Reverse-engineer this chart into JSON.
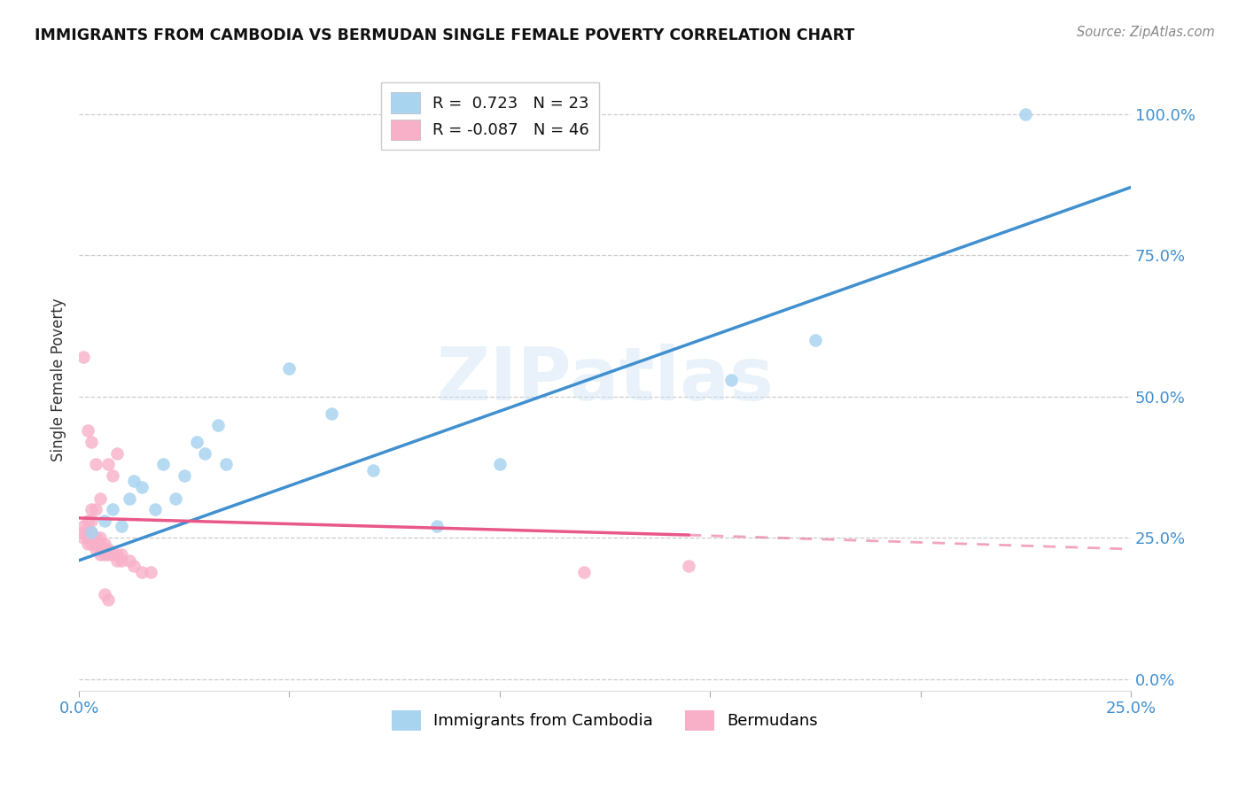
{
  "title": "IMMIGRANTS FROM CAMBODIA VS BERMUDAN SINGLE FEMALE POVERTY CORRELATION CHART",
  "source": "Source: ZipAtlas.com",
  "ylabel": "Single Female Poverty",
  "yticks": [
    "0.0%",
    "25.0%",
    "50.0%",
    "75.0%",
    "100.0%"
  ],
  "ytick_vals": [
    0.0,
    0.25,
    0.5,
    0.75,
    1.0
  ],
  "xlim": [
    0.0,
    0.25
  ],
  "ylim": [
    -0.02,
    1.08
  ],
  "r_cambodia": 0.723,
  "n_cambodia": 23,
  "r_bermuda": -0.087,
  "n_bermuda": 46,
  "legend_label_cambodia": "Immigrants from Cambodia",
  "legend_label_bermuda": "Bermudans",
  "color_cambodia": "#A8D4F0",
  "color_cambodia_line": "#4090D0",
  "color_bermuda": "#F8B0C8",
  "color_bermuda_line": "#E85888",
  "watermark": "ZIPatlas",
  "background_color": "#ffffff",
  "scatter_cambodia_x": [
    0.003,
    0.006,
    0.008,
    0.01,
    0.012,
    0.013,
    0.015,
    0.018,
    0.02,
    0.023,
    0.025,
    0.028,
    0.03,
    0.033,
    0.035,
    0.05,
    0.06,
    0.07,
    0.085,
    0.1,
    0.155,
    0.175,
    0.225
  ],
  "scatter_cambodia_y": [
    0.26,
    0.28,
    0.3,
    0.27,
    0.32,
    0.35,
    0.34,
    0.3,
    0.38,
    0.32,
    0.36,
    0.42,
    0.4,
    0.45,
    0.38,
    0.55,
    0.47,
    0.37,
    0.27,
    0.38,
    0.53,
    0.6,
    1.0
  ],
  "scatter_bermuda_x": [
    0.001,
    0.001,
    0.001,
    0.002,
    0.002,
    0.002,
    0.002,
    0.003,
    0.003,
    0.003,
    0.003,
    0.003,
    0.004,
    0.004,
    0.004,
    0.004,
    0.005,
    0.005,
    0.005,
    0.005,
    0.005,
    0.006,
    0.006,
    0.006,
    0.007,
    0.007,
    0.007,
    0.008,
    0.008,
    0.009,
    0.009,
    0.009,
    0.01,
    0.01,
    0.012,
    0.013,
    0.015,
    0.017,
    0.002,
    0.003,
    0.004,
    0.006,
    0.007,
    0.12,
    0.145,
    0.001
  ],
  "scatter_bermuda_y": [
    0.25,
    0.26,
    0.27,
    0.24,
    0.25,
    0.26,
    0.28,
    0.24,
    0.25,
    0.26,
    0.28,
    0.3,
    0.23,
    0.24,
    0.25,
    0.3,
    0.22,
    0.23,
    0.24,
    0.25,
    0.32,
    0.22,
    0.23,
    0.24,
    0.22,
    0.23,
    0.38,
    0.22,
    0.36,
    0.21,
    0.22,
    0.4,
    0.21,
    0.22,
    0.21,
    0.2,
    0.19,
    0.19,
    0.44,
    0.42,
    0.38,
    0.15,
    0.14,
    0.19,
    0.2,
    0.57
  ],
  "line_cambodia_x0": 0.0,
  "line_cambodia_x1": 0.25,
  "line_cambodia_y0": 0.21,
  "line_cambodia_y1": 0.87,
  "line_bermuda_x0": 0.0,
  "line_bermuda_x1": 0.145,
  "line_bermuda_y0": 0.285,
  "line_bermuda_y1": 0.255,
  "line_bermuda_dash_x0": 0.145,
  "line_bermuda_dash_x1": 0.25,
  "line_bermuda_dash_y0": 0.255,
  "line_bermuda_dash_y1": 0.23
}
